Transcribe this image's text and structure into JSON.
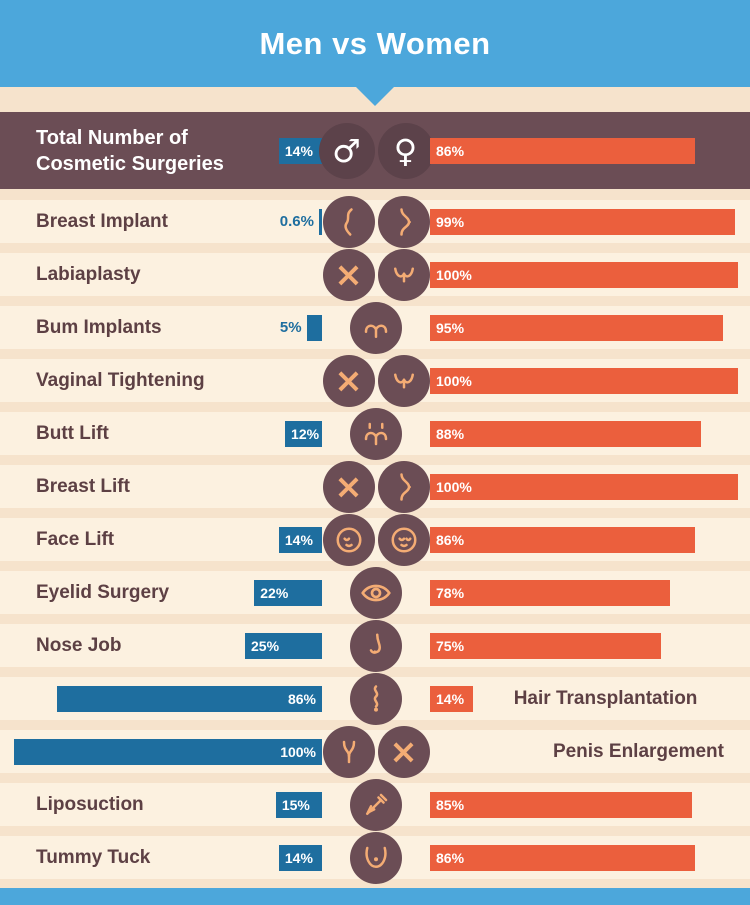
{
  "title": "Men vs Women",
  "colors": {
    "top_band": "#4CA7DB",
    "men_bar": "#1E6E9F",
    "women_bar": "#EB5F3D",
    "header_row_bg": "#6B4D55",
    "row_bg": "#FCF1E0",
    "page_bg": "#F6E3CC",
    "label_text": "#5D4044",
    "icon_glyph": "#F4AC74"
  },
  "glyphs": {
    "male": "♂",
    "female": "♀",
    "x": "×"
  },
  "header_row": {
    "label_line1": "Total Number of",
    "label_line2": "Cosmetic Surgeries",
    "men": {
      "pct": 14,
      "text": "14%"
    },
    "women": {
      "pct": 86,
      "text": "86%"
    },
    "icons": [
      "male-icon",
      "female-icon"
    ]
  },
  "rows": [
    {
      "label": "Breast Implant",
      "men": {
        "pct": 0.6,
        "text": "0.6%"
      },
      "women": {
        "pct": 99,
        "text": "99%"
      },
      "icons": [
        "body-profile-icon",
        "breast-icon"
      ]
    },
    {
      "label": "Labiaplasty",
      "men": {
        "pct": 0,
        "text": "×"
      },
      "women": {
        "pct": 100,
        "text": "100%"
      },
      "icons": [
        "x-icon",
        "labia-icon"
      ]
    },
    {
      "label": "Bum Implants",
      "men": {
        "pct": 5,
        "text": "5%"
      },
      "women": {
        "pct": 95,
        "text": "95%"
      },
      "icons": [
        "bum-icon"
      ]
    },
    {
      "label": "Vaginal Tightening",
      "men": {
        "pct": 0,
        "text": "×"
      },
      "women": {
        "pct": 100,
        "text": "100%"
      },
      "icons": [
        "x-icon",
        "labia-icon"
      ]
    },
    {
      "label": "Butt Lift",
      "men": {
        "pct": 12,
        "text": "12%"
      },
      "women": {
        "pct": 88,
        "text": "88%"
      },
      "icons": [
        "bum-lift-icon"
      ]
    },
    {
      "label": "Breast Lift",
      "men": {
        "pct": 0,
        "text": "×"
      },
      "women": {
        "pct": 100,
        "text": "100%"
      },
      "icons": [
        "x-icon",
        "breast-icon"
      ]
    },
    {
      "label": "Face Lift",
      "men": {
        "pct": 14,
        "text": "14%"
      },
      "women": {
        "pct": 86,
        "text": "86%"
      },
      "icons": [
        "male-face-icon",
        "female-face-icon"
      ]
    },
    {
      "label": "Eyelid Surgery",
      "men": {
        "pct": 22,
        "text": "22%"
      },
      "women": {
        "pct": 78,
        "text": "78%"
      },
      "icons": [
        "eye-icon"
      ]
    },
    {
      "label": "Nose Job",
      "men": {
        "pct": 25,
        "text": "25%"
      },
      "women": {
        "pct": 75,
        "text": "75%"
      },
      "icons": [
        "nose-icon"
      ]
    },
    {
      "label": "Hair Transplantation",
      "men": {
        "pct": 86,
        "text": "86%"
      },
      "women": {
        "pct": 14,
        "text": "14%"
      },
      "icons": [
        "hair-icon"
      ]
    },
    {
      "label": "Penis Enlargement",
      "men": {
        "pct": 100,
        "text": "100%"
      },
      "women": {
        "pct": 0,
        "text": "×"
      },
      "icons": [
        "penis-icon",
        "x-icon"
      ]
    },
    {
      "label": "Liposuction",
      "men": {
        "pct": 15,
        "text": "15%"
      },
      "women": {
        "pct": 85,
        "text": "85%"
      },
      "icons": [
        "liposuction-icon"
      ]
    },
    {
      "label": "Tummy Tuck",
      "men": {
        "pct": 14,
        "text": "14%"
      },
      "women": {
        "pct": 86,
        "text": "86%"
      },
      "icons": [
        "tummy-icon"
      ]
    }
  ],
  "chart_data": {
    "type": "bar",
    "orientation": "horizontal-diverging",
    "title": "Men vs Women",
    "categories": [
      "Total Number of Cosmetic Surgeries",
      "Breast Implant",
      "Labiaplasty",
      "Bum Implants",
      "Vaginal Tightening",
      "Butt Lift",
      "Breast Lift",
      "Face Lift",
      "Eyelid Surgery",
      "Nose Job",
      "Hair Transplantation",
      "Penis Enlargement",
      "Liposuction",
      "Tummy Tuck"
    ],
    "series": [
      {
        "name": "Men",
        "color": "#1E6E9F",
        "values": [
          14,
          0.6,
          0,
          5,
          0,
          12,
          0,
          14,
          22,
          25,
          86,
          100,
          15,
          14
        ]
      },
      {
        "name": "Women",
        "color": "#EB5F3D",
        "values": [
          86,
          99,
          100,
          95,
          100,
          88,
          100,
          86,
          78,
          75,
          14,
          0,
          85,
          86
        ]
      }
    ],
    "value_unit": "%",
    "xlim": [
      0,
      100
    ],
    "legend": "gender icons at center of each row",
    "notes": "Zero values are shown as an X icon instead of a bar"
  }
}
